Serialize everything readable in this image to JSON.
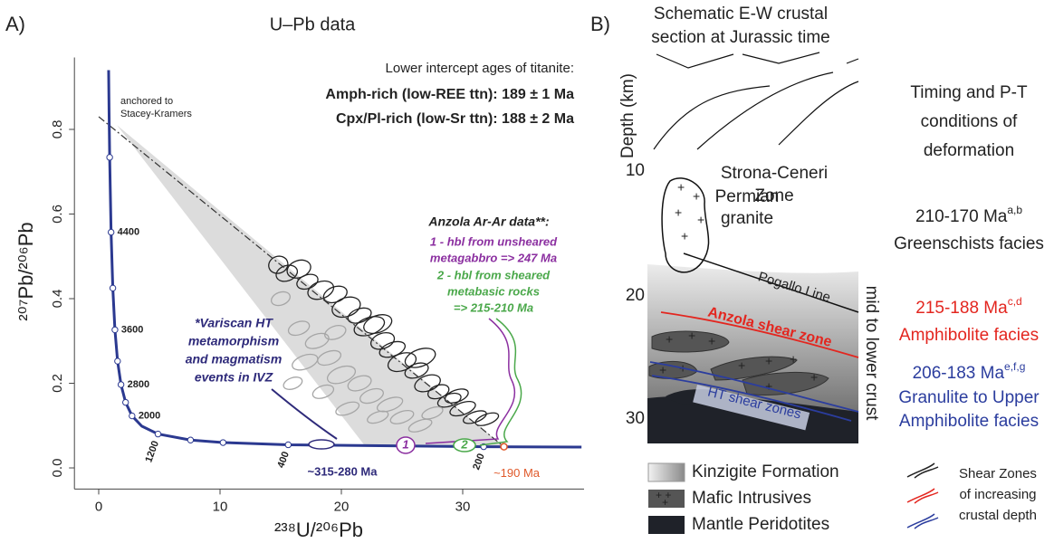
{
  "chart_data": {
    "type": "concordia",
    "panel_label": "A)",
    "title": "U–Pb data",
    "xlabel": "²³⁸U/²⁰⁶Pb",
    "ylabel": "²⁰⁷Pb/²⁰⁶Pb",
    "xlim": [
      -2,
      40
    ],
    "ylim": [
      -0.05,
      0.97
    ],
    "xticks": [
      0,
      10,
      20,
      30
    ],
    "yticks": [
      {
        "value": 0,
        "label": "0.0"
      },
      0.2,
      0.4,
      0.6,
      0.8
    ],
    "concordia": {
      "color": "#2b3990",
      "x": [
        0.8175,
        0.853,
        0.904,
        1.021,
        1.163,
        1.337,
        1.555,
        1.838,
        2.217,
        2.748,
        3.549,
        4.887,
        7.57,
        10.25,
        15.62,
        31.73,
        39.79
      ],
      "y": [
        0.94,
        0.845,
        0.734,
        0.557,
        0.425,
        0.3264,
        0.2523,
        0.1968,
        0.1549,
        0.1229,
        0.0987,
        0.0801,
        0.0658,
        0.0599,
        0.0547,
        0.0501,
        0.0493
      ]
    },
    "age_markers": {
      "x": [
        0.904,
        1.021,
        1.163,
        1.337,
        1.555,
        1.838,
        2.217,
        2.748,
        4.887,
        7.57,
        10.25,
        15.62,
        31.73
      ],
      "y": [
        0.734,
        0.557,
        0.425,
        0.3264,
        0.2523,
        0.1968,
        0.1549,
        0.1229,
        0.0801,
        0.0658,
        0.0599,
        0.0547,
        0.0501
      ],
      "labels": [
        null,
        4400,
        null,
        3600,
        null,
        2800,
        null,
        2000,
        1200,
        null,
        null,
        400,
        200
      ]
    },
    "envelope": {
      "color": "#dcdcdc",
      "x": [
        1.5,
        22,
        33.4
      ],
      "y": [
        0.81,
        0.05,
        0.05
      ]
    },
    "discordia": {
      "x": [
        0,
        33.4
      ],
      "y": [
        0.83,
        0.05
      ]
    },
    "series": [
      {
        "color": "#222222",
        "x": [
          14.8,
          15.5,
          16.5,
          17.2,
          18.3,
          19.5,
          20.4,
          21.5,
          22.3,
          23.4,
          24.2,
          25.0,
          26.2,
          27.1,
          28.0,
          28.9,
          30.0,
          31.0,
          32.0,
          23.0,
          26.5,
          29.5
        ],
        "y": [
          0.48,
          0.46,
          0.47,
          0.44,
          0.42,
          0.41,
          0.38,
          0.36,
          0.335,
          0.3,
          0.28,
          0.25,
          0.23,
          0.2,
          0.18,
          0.16,
          0.14,
          0.12,
          0.115,
          0.34,
          0.26,
          0.17
        ],
        "x_err": [
          0.8,
          0.9,
          1.0,
          0.9,
          1.1,
          1.0,
          1.2,
          1.0,
          1.3,
          1.0,
          1.1,
          1.2,
          1.0,
          1.1,
          0.9,
          1.0,
          1.1,
          1.0,
          1.0,
          1.2,
          1.3,
          1.0
        ],
        "y_err": [
          0.02,
          0.018,
          0.02,
          0.016,
          0.02,
          0.018,
          0.022,
          0.016,
          0.02,
          0.018,
          0.016,
          0.02,
          0.016,
          0.018,
          0.015,
          0.014,
          0.014,
          0.012,
          0.012,
          0.02,
          0.02,
          0.014
        ]
      },
      {
        "color": "#a6a6a6",
        "x": [
          15,
          16.5,
          18,
          17,
          19,
          20,
          21.5,
          18.5,
          22.5,
          24,
          20.5,
          25,
          23,
          26.5,
          16,
          19.5,
          27.5
        ],
        "y": [
          0.4,
          0.33,
          0.3,
          0.25,
          0.26,
          0.22,
          0.2,
          0.18,
          0.17,
          0.15,
          0.14,
          0.12,
          0.12,
          0.1,
          0.2,
          0.32,
          0.13
        ],
        "x_err": [
          0.8,
          0.9,
          1.0,
          1.1,
          1.0,
          1.2,
          1.0,
          0.9,
          1.0,
          1.1,
          1.0,
          1.0,
          0.9,
          1.0,
          0.8,
          0.9,
          0.9
        ],
        "y_err": [
          0.015,
          0.015,
          0.016,
          0.016,
          0.015,
          0.018,
          0.016,
          0.014,
          0.015,
          0.014,
          0.013,
          0.013,
          0.012,
          0.012,
          0.013,
          0.015,
          0.012
        ]
      }
    ],
    "lower_intercept": {
      "color": "#e0592a",
      "x": 33.4,
      "y": 0.05,
      "label": "~190 Ma"
    },
    "annotations": {
      "anchor": [
        "anchored to",
        "Stacey-Kramers"
      ],
      "intercepts": [
        "Lower intercept ages of titanite:",
        "Amph-rich (low-REE ttn): 189 ± 1 Ma",
        "Cpx/Pl-rich (low-Sr ttn): 188 ± 2 Ma"
      ],
      "arar_title": "Anzola Ar-Ar data**:",
      "arar_1": [
        "1 - hbl from unsheared",
        "metagabbro => 247 Ma"
      ],
      "arar_2": [
        "2 - hbl from sheared",
        "metabasic rocks",
        "=> 215-210 Ma"
      ],
      "variscan": [
        "*Variscan HT",
        "metamorphism",
        "and magmatism",
        "events in IVZ"
      ],
      "variscan_age": "~315-280 Ma",
      "marker_1": "1",
      "marker_2": "2"
    }
  },
  "panel_b": {
    "label": "B)",
    "title": [
      "Schematic E-W crustal",
      "section at Jurassic time"
    ],
    "depth_label": "Depth (km)",
    "depth_ticks": [
      "10",
      "20",
      "30"
    ],
    "units": {
      "strona": [
        "Strona-Ceneri",
        "Zone"
      ],
      "granite": [
        "Permian",
        "granite"
      ],
      "pogallo": "Pogallo Line",
      "anzola": "Anzola shear zone",
      "ht": "HT shear zones",
      "crust": "mid to lower crust"
    },
    "legend": [
      "Kinzigite Formation",
      "Mafic Intrusives",
      "Mantle Peridotites"
    ],
    "shear_legend": [
      "Shear Zones",
      "of increasing",
      "crustal depth"
    ],
    "timing": {
      "heading": [
        "Timing and P-T",
        "conditions of",
        "deformation"
      ],
      "entries": [
        {
          "age": "210-170 Ma",
          "refs": "a,b",
          "facies": [
            "Greenschists facies"
          ]
        },
        {
          "age": "215-188 Ma",
          "refs": "c,d",
          "facies": [
            "Amphibolite facies"
          ]
        },
        {
          "age": "206-183 Ma",
          "refs": "e,f,g",
          "facies": [
            "Granulite to Upper",
            "Amphibolite facies"
          ]
        }
      ]
    }
  }
}
